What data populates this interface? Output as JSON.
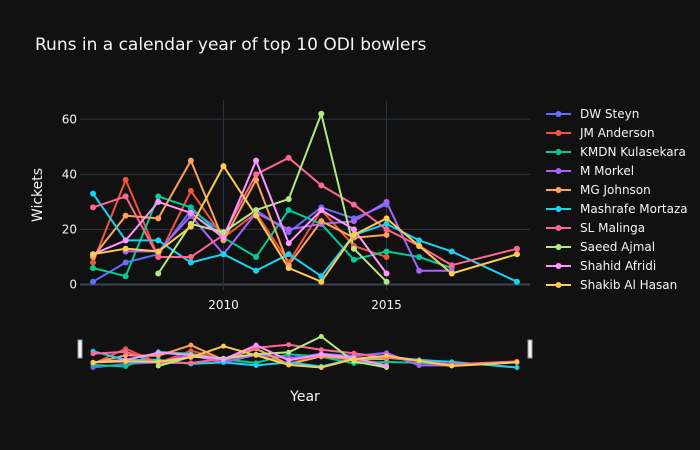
{
  "chart_data": {
    "type": "line",
    "title": "Runs in a calendar year of top 10 ODI bowlers",
    "xlabel": "Year",
    "ylabel": "Wickets",
    "xlim": [
      2005.6,
      2019.4
    ],
    "ylim": [
      -2,
      67
    ],
    "x_ticks": [
      2010,
      2015
    ],
    "y_ticks": [
      0,
      20,
      40,
      60
    ],
    "grid": true,
    "legend_position": "right",
    "range_slider": true,
    "series": [
      {
        "name": "DW Steyn",
        "color": "#636efa",
        "x": [
          2006,
          2007,
          2008,
          2009,
          2010,
          2011,
          2012,
          2013,
          2014,
          2015
        ],
        "y": [
          1,
          8,
          11,
          27,
          19,
          27,
          19,
          28,
          24,
          29
        ]
      },
      {
        "name": "JM Anderson",
        "color": "#EF553B",
        "x": [
          2006,
          2007,
          2008,
          2009,
          2010,
          2011,
          2012,
          2013,
          2014,
          2015
        ],
        "y": [
          8,
          38,
          10,
          34,
          17,
          26,
          8,
          27,
          14,
          10
        ]
      },
      {
        "name": "KMDN Kulasekara",
        "color": "#00cc96",
        "x": [
          2006,
          2007,
          2008,
          2009,
          2010,
          2011,
          2012,
          2013,
          2014,
          2015,
          2016,
          2017
        ],
        "y": [
          6,
          3,
          32,
          28,
          17,
          10,
          27,
          22,
          9,
          12,
          10,
          6
        ]
      },
      {
        "name": "M Morkel",
        "color": "#ab63fa",
        "x": [
          2007,
          2008,
          2009,
          2010,
          2011,
          2012,
          2013,
          2014,
          2015,
          2016,
          2017
        ],
        "y": [
          12,
          12,
          25,
          11,
          26,
          20,
          22,
          23,
          30,
          5,
          5
        ]
      },
      {
        "name": "MG Johnson",
        "color": "#FFA15A",
        "x": [
          2006,
          2007,
          2008,
          2009,
          2010,
          2011,
          2012,
          2013,
          2014,
          2015
        ],
        "y": [
          10,
          25,
          24,
          45,
          16,
          38,
          7,
          23,
          17,
          18
        ]
      },
      {
        "name": "Mashrafe Mortaza",
        "color": "#19d3f3",
        "x": [
          2006,
          2007,
          2008,
          2009,
          2010,
          2011,
          2012,
          2013,
          2014,
          2015,
          2016,
          2017,
          2019
        ],
        "y": [
          33,
          16,
          16,
          8,
          11,
          5,
          11,
          3,
          18,
          22,
          16,
          12,
          1
        ]
      },
      {
        "name": "SL Malinga",
        "color": "#FF6692",
        "x": [
          2006,
          2007,
          2008,
          2009,
          2010,
          2011,
          2012,
          2013,
          2014,
          2015,
          2016,
          2017,
          2019
        ],
        "y": [
          28,
          32,
          10,
          10,
          18,
          40,
          46,
          36,
          29,
          20,
          14,
          7,
          13
        ]
      },
      {
        "name": "Saeed Ajmal",
        "color": "#B6E880",
        "x": [
          2008,
          2009,
          2010,
          2011,
          2012,
          2013,
          2014,
          2015
        ],
        "y": [
          4,
          22,
          19,
          27,
          31,
          62,
          13,
          1
        ]
      },
      {
        "name": "Shahid Afridi",
        "color": "#FF97FF",
        "x": [
          2006,
          2007,
          2008,
          2009,
          2010,
          2011,
          2012,
          2013,
          2014,
          2015
        ],
        "y": [
          11,
          16,
          30,
          26,
          17,
          45,
          15,
          27,
          20,
          4
        ]
      },
      {
        "name": "Shakib Al Hasan",
        "color": "#FECB52",
        "x": [
          2006,
          2007,
          2008,
          2009,
          2010,
          2011,
          2012,
          2013,
          2014,
          2015,
          2016,
          2017,
          2019
        ],
        "y": [
          11,
          13,
          12,
          21,
          43,
          25,
          6,
          1,
          18,
          24,
          14,
          4,
          11
        ]
      }
    ]
  }
}
